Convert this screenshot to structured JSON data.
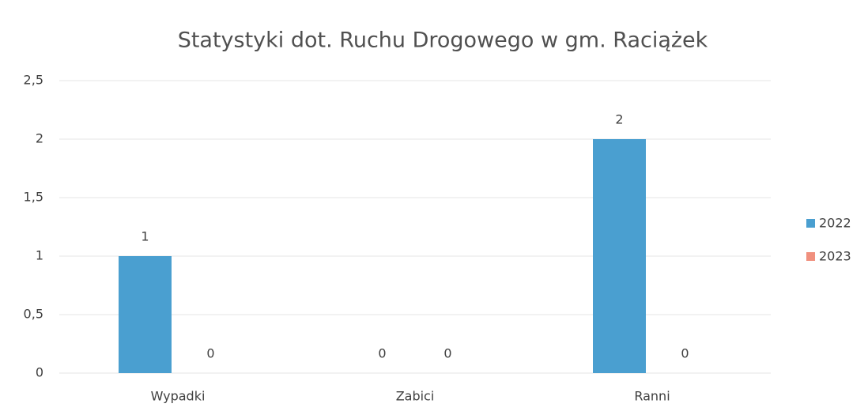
{
  "chart_data": {
    "type": "bar",
    "title": "Statystyki dot. Ruchu Drogowego w gm. Raciążek",
    "categories": [
      "Wypadki",
      "Zabici",
      "Ranni"
    ],
    "series": [
      {
        "name": "2022",
        "color": "#4a9fd0",
        "values": [
          1,
          0,
          2
        ]
      },
      {
        "name": "2023",
        "color": "#f0907e",
        "values": [
          0,
          0,
          0
        ]
      }
    ],
    "ylim": [
      0,
      2.5
    ],
    "yticks": [
      0,
      {
        "value": 0.5,
        "label": "0,5"
      },
      1,
      {
        "value": 1.5,
        "label": "1,5"
      },
      2,
      {
        "value": 2.5,
        "label": "2,5"
      }
    ],
    "grid": true,
    "legend": "right"
  }
}
